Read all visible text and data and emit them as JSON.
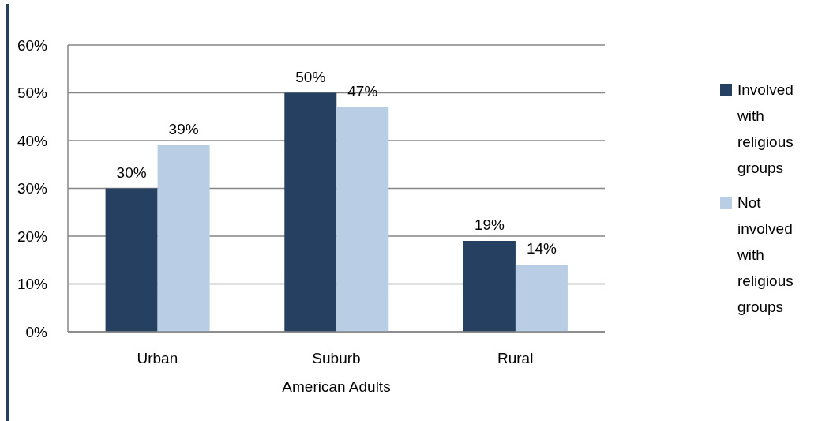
{
  "chart_data": {
    "type": "bar",
    "xlabel": "American Adults",
    "categories": [
      "Urban",
      "Suburb",
      "Rural"
    ],
    "series": [
      {
        "name": "Involved with religious groups",
        "color": "#264061",
        "values": [
          30,
          50,
          19
        ],
        "value_labels": [
          "30%",
          "50%",
          "19%"
        ]
      },
      {
        "name": "Not involved with religious groups",
        "color": "#b9cde5",
        "values": [
          39,
          47,
          14
        ],
        "value_labels": [
          "39%",
          "47%",
          "14%"
        ]
      }
    ],
    "ylim": [
      0,
      60
    ],
    "yticks": [
      {
        "value": 0,
        "label": "0%"
      },
      {
        "value": 10,
        "label": "10%"
      },
      {
        "value": 20,
        "label": "20%"
      },
      {
        "value": 30,
        "label": "30%"
      },
      {
        "value": 40,
        "label": "40%"
      },
      {
        "value": 50,
        "label": "50%"
      },
      {
        "value": 60,
        "label": "60%"
      }
    ],
    "grid": "y",
    "legend": "right"
  }
}
